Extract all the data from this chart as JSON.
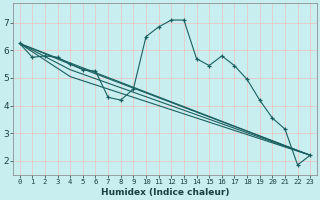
{
  "xlabel": "Humidex (Indice chaleur)",
  "bg_color": "#c8eef0",
  "grid_color": "#e8c8c8",
  "line_color": "#1a6060",
  "xlim": [
    -0.5,
    23.5
  ],
  "ylim": [
    1.5,
    7.7
  ],
  "yticks": [
    2,
    3,
    4,
    5,
    6,
    7
  ],
  "xticks": [
    0,
    1,
    2,
    3,
    4,
    5,
    6,
    7,
    8,
    9,
    10,
    11,
    12,
    13,
    14,
    15,
    16,
    17,
    18,
    19,
    20,
    21,
    22,
    23
  ],
  "line1_x": [
    0,
    1,
    2,
    3,
    4,
    5,
    6,
    7,
    8,
    9,
    10,
    11,
    12,
    13,
    14,
    15,
    16,
    17,
    18,
    19,
    20,
    21,
    22,
    23
  ],
  "line1_y": [
    6.25,
    5.75,
    5.8,
    5.75,
    5.5,
    5.3,
    5.25,
    4.3,
    4.2,
    4.6,
    6.5,
    6.85,
    7.1,
    7.1,
    5.7,
    5.45,
    5.8,
    5.45,
    4.95,
    4.2,
    3.55,
    3.15,
    1.85,
    2.2
  ],
  "line2_x": [
    0,
    23
  ],
  "line2_y": [
    6.25,
    2.2
  ],
  "line3_x": [
    0,
    4,
    23
  ],
  "line3_y": [
    6.25,
    5.5,
    2.2
  ],
  "line4_x": [
    0,
    4,
    23
  ],
  "line4_y": [
    6.25,
    5.3,
    2.2
  ],
  "line5_x": [
    0,
    4,
    23
  ],
  "line5_y": [
    6.25,
    5.05,
    2.2
  ]
}
